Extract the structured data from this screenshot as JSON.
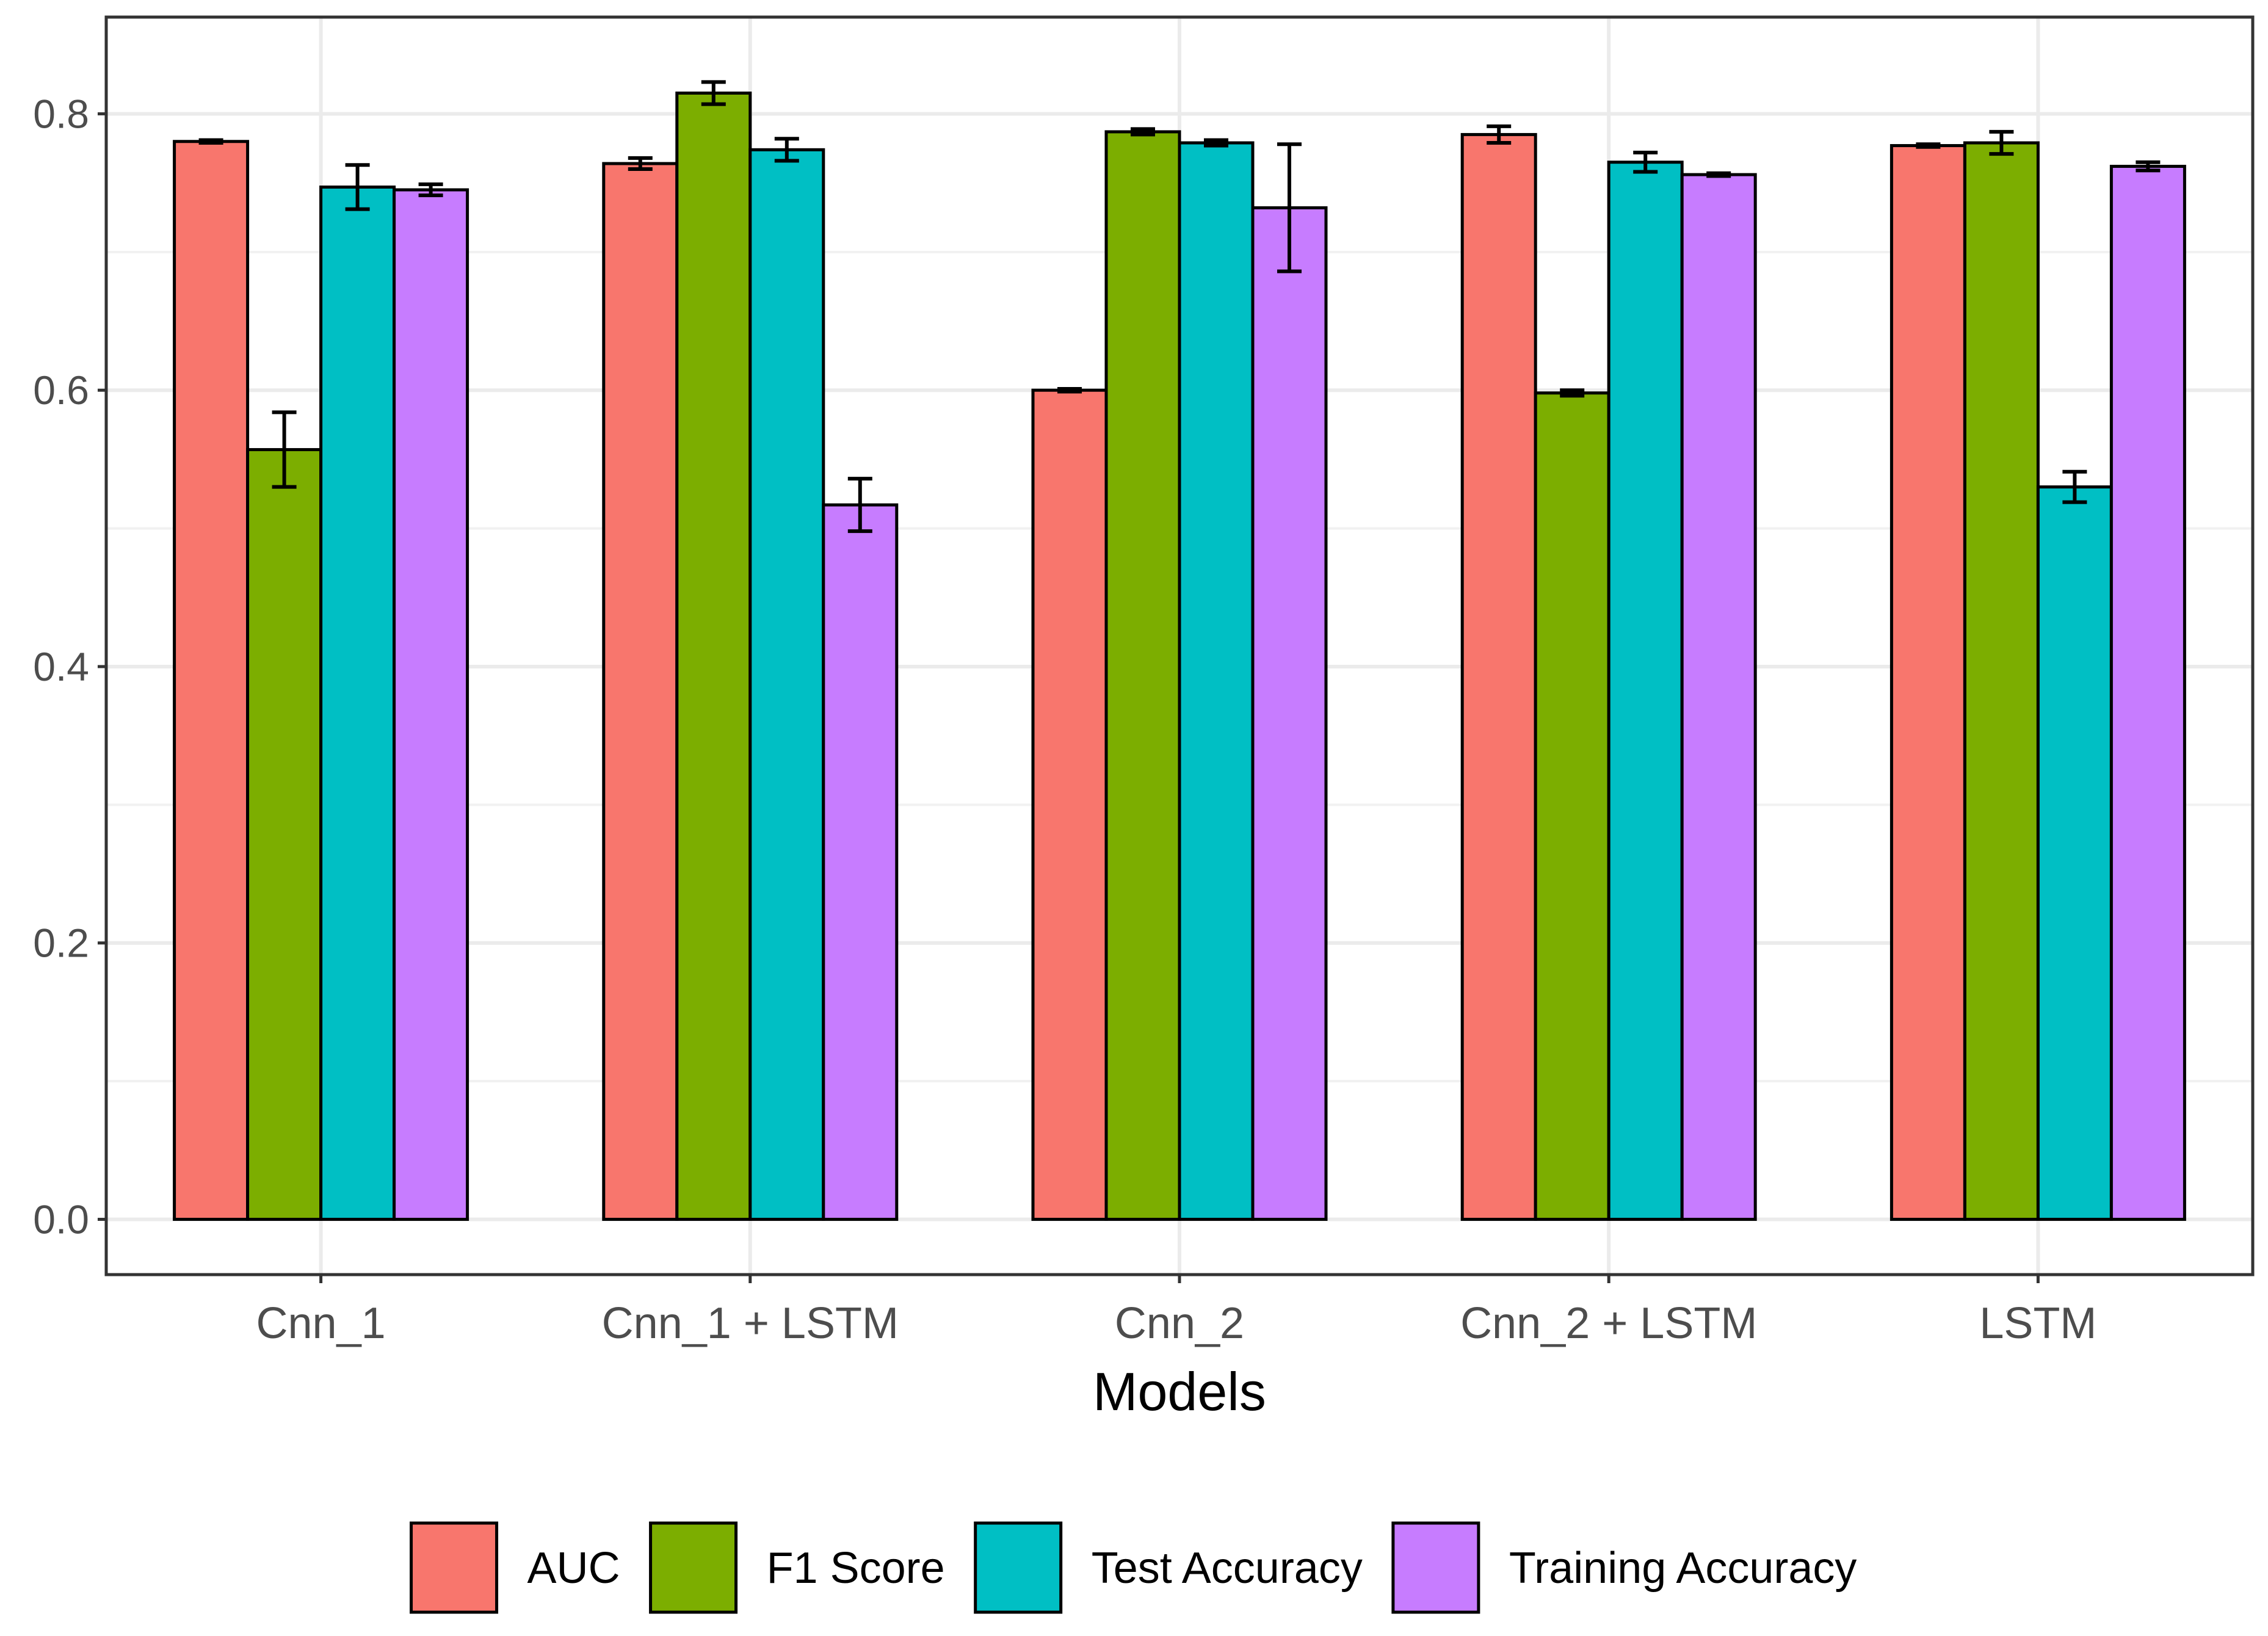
{
  "chart_data": {
    "type": "bar",
    "title": "",
    "xlabel": "Models",
    "ylabel": "",
    "ylim": [
      -0.04,
      0.87
    ],
    "yticks": [
      0.0,
      0.2,
      0.4,
      0.6,
      0.8
    ],
    "ytick_labels": [
      "0.0",
      "0.2",
      "0.4",
      "0.6",
      "0.8"
    ],
    "grid": true,
    "legend_position": "bottom",
    "categories": [
      "Cnn_1",
      "Cnn_1 + LSTM",
      "Cnn_2",
      "Cnn_2 + LSTM",
      "LSTM"
    ],
    "series": [
      {
        "name": "AUC",
        "color": "#F8766D",
        "values": [
          0.78,
          0.764,
          0.6,
          0.785,
          0.777
        ],
        "errors": [
          0.001,
          0.004,
          0.001,
          0.006,
          0.001
        ]
      },
      {
        "name": "F1 Score",
        "color": "#7CAE00",
        "values": [
          0.557,
          0.815,
          0.787,
          0.598,
          0.779
        ],
        "errors": [
          0.027,
          0.008,
          0.002,
          0.002,
          0.008
        ]
      },
      {
        "name": "Test Accuracy",
        "color": "#00BFC4",
        "values": [
          0.747,
          0.774,
          0.779,
          0.765,
          0.53
        ],
        "errors": [
          0.016,
          0.008,
          0.002,
          0.007,
          0.011
        ]
      },
      {
        "name": "Training Accuracy",
        "color": "#C77CFF",
        "values": [
          0.745,
          0.517,
          0.732,
          0.756,
          0.762
        ],
        "errors": [
          0.004,
          0.019,
          0.046,
          0.001,
          0.003
        ]
      }
    ]
  }
}
